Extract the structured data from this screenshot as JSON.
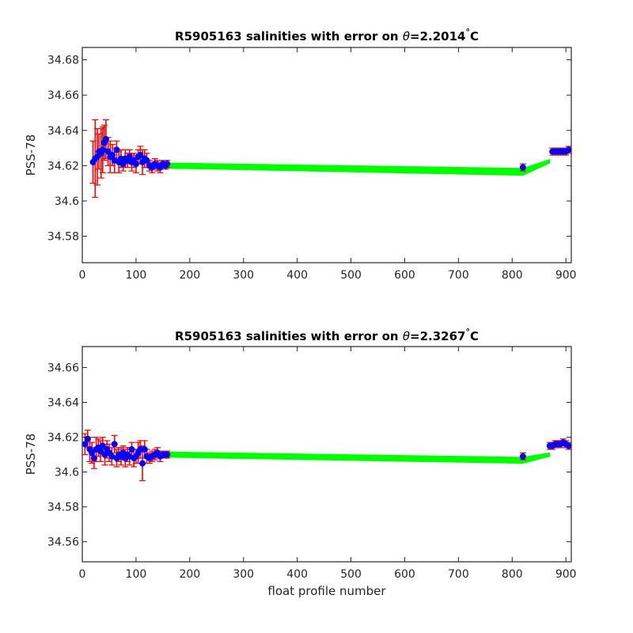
{
  "chart_data": [
    {
      "type": "scatter",
      "title_prefix": "R5905163 salinities with error on ",
      "title_theta": "θ",
      "title_value": "=2.2014",
      "title_degree": "°",
      "title_unit": "C",
      "xlabel": "",
      "ylabel": "PSS-78",
      "xlim": [
        0,
        910
      ],
      "ylim": [
        34.565,
        34.687
      ],
      "xticks": [
        0,
        100,
        200,
        300,
        400,
        500,
        600,
        700,
        800,
        900
      ],
      "yticks": [
        34.58,
        34.6,
        34.62,
        34.64,
        34.66,
        34.68
      ],
      "ytick_labels": [
        "34.58",
        "34.6",
        "34.62",
        "34.64",
        "34.66",
        "34.68"
      ],
      "colors": {
        "band": "#00ff00",
        "error": "#ff0000",
        "points": "#0000ff"
      },
      "band_upper": [
        [
          160,
          34.6215
        ],
        [
          820,
          34.6185
        ],
        [
          870,
          34.6235
        ]
      ],
      "band_lower": [
        [
          160,
          34.6185
        ],
        [
          820,
          34.6145
        ],
        [
          870,
          34.6215
        ]
      ],
      "series": [
        {
          "x": [
            20,
            24,
            28,
            31,
            35,
            38,
            41,
            44,
            48,
            52,
            56,
            60,
            64,
            68,
            72,
            76,
            80,
            84,
            88,
            92,
            96,
            100,
            104,
            108,
            112,
            116,
            120,
            125,
            130,
            135,
            140,
            145,
            150,
            155,
            158,
            820,
            875,
            880,
            885,
            890,
            895,
            900,
            905
          ],
          "y": [
            34.622,
            34.624,
            34.625,
            34.628,
            34.627,
            34.629,
            34.633,
            34.635,
            34.628,
            34.625,
            34.626,
            34.623,
            34.629,
            34.622,
            34.624,
            34.621,
            34.624,
            34.623,
            34.625,
            34.622,
            34.623,
            34.621,
            34.625,
            34.626,
            34.622,
            34.624,
            34.623,
            34.62,
            34.619,
            34.621,
            34.62,
            34.619,
            34.621,
            34.62,
            34.621,
            34.619,
            34.628,
            34.628,
            34.628,
            34.628,
            34.628,
            34.628,
            34.629
          ],
          "err": [
            0.012,
            0.022,
            0.016,
            0.01,
            0.014,
            0.013,
            0.01,
            0.011,
            0.008,
            0.009,
            0.006,
            0.007,
            0.005,
            0.006,
            0.005,
            0.004,
            0.005,
            0.004,
            0.004,
            0.005,
            0.004,
            0.005,
            0.004,
            0.005,
            0.007,
            0.005,
            0.004,
            0.003,
            0.003,
            0.003,
            0.003,
            0.003,
            0.002,
            0.002,
            0.002,
            0.002,
            0.002,
            0.002,
            0.002,
            0.002,
            0.002,
            0.002,
            0.002
          ]
        }
      ]
    },
    {
      "type": "scatter",
      "title_prefix": "R5905163 salinities with error on ",
      "title_theta": "θ",
      "title_value": "=2.3267",
      "title_degree": "°",
      "title_unit": "C",
      "xlabel": "float profile number",
      "ylabel": "PSS-78",
      "xlim": [
        0,
        910
      ],
      "ylim": [
        34.5485,
        34.672
      ],
      "xticks": [
        0,
        100,
        200,
        300,
        400,
        500,
        600,
        700,
        800,
        900
      ],
      "yticks": [
        34.56,
        34.58,
        34.6,
        34.62,
        34.64,
        34.66
      ],
      "ytick_labels": [
        "34.56",
        "34.58",
        "34.6",
        "34.62",
        "34.64",
        "34.66"
      ],
      "colors": {
        "band": "#00ff00",
        "error": "#ff0000",
        "points": "#0000ff"
      },
      "band_upper": [
        [
          160,
          34.6115
        ],
        [
          820,
          34.6085
        ],
        [
          870,
          34.611
        ]
      ],
      "band_lower": [
        [
          160,
          34.6085
        ],
        [
          820,
          34.605
        ],
        [
          870,
          34.609
        ]
      ],
      "series": [
        {
          "x": [
            5,
            10,
            14,
            18,
            22,
            26,
            30,
            34,
            38,
            42,
            46,
            50,
            55,
            60,
            64,
            68,
            72,
            76,
            80,
            84,
            88,
            92,
            96,
            100,
            104,
            108,
            112,
            116,
            120,
            125,
            130,
            135,
            140,
            145,
            150,
            155,
            158,
            820,
            870,
            875,
            880,
            885,
            890,
            895,
            900,
            905
          ],
          "y": [
            34.616,
            34.619,
            34.613,
            34.611,
            34.608,
            34.613,
            34.614,
            34.612,
            34.615,
            34.61,
            34.613,
            34.611,
            34.609,
            34.616,
            34.608,
            34.61,
            34.609,
            34.611,
            34.608,
            34.61,
            34.609,
            34.613,
            34.608,
            34.609,
            34.611,
            34.613,
            34.605,
            34.613,
            34.609,
            34.608,
            34.609,
            34.61,
            34.611,
            34.609,
            34.61,
            34.61,
            34.61,
            34.609,
            34.615,
            34.615,
            34.616,
            34.616,
            34.616,
            34.617,
            34.616,
            34.615
          ],
          "err": [
            0.006,
            0.005,
            0.007,
            0.006,
            0.006,
            0.007,
            0.005,
            0.006,
            0.005,
            0.006,
            0.005,
            0.005,
            0.005,
            0.005,
            0.005,
            0.004,
            0.005,
            0.004,
            0.005,
            0.004,
            0.005,
            0.004,
            0.005,
            0.004,
            0.006,
            0.005,
            0.01,
            0.005,
            0.004,
            0.003,
            0.003,
            0.003,
            0.003,
            0.003,
            0.002,
            0.002,
            0.002,
            0.002,
            0.002,
            0.002,
            0.002,
            0.002,
            0.002,
            0.002,
            0.002,
            0.002
          ]
        }
      ]
    }
  ]
}
